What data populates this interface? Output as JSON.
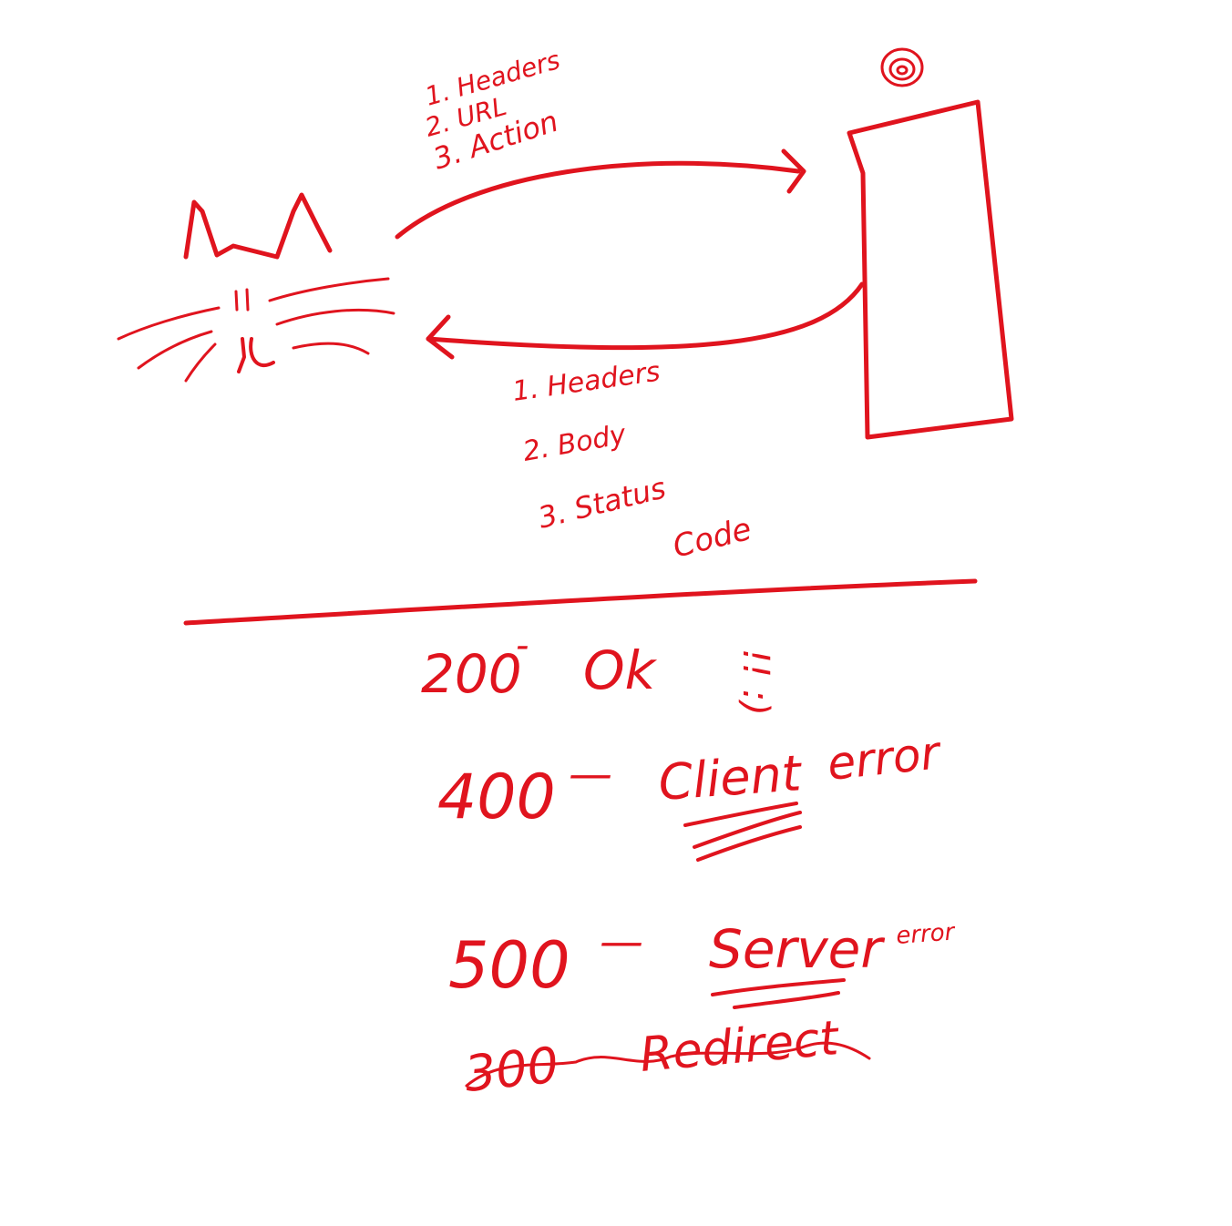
{
  "ink_color": "#e0141e",
  "background": "#ffffff",
  "request": {
    "items": [
      "1. Headers",
      "2. URL",
      "3. Action"
    ]
  },
  "response": {
    "items": [
      "1. Headers",
      "2. Body",
      "3. Status",
      "Code"
    ]
  },
  "status_codes": {
    "ok": {
      "code": "200",
      "separator": "-",
      "label": "Ok",
      "emote": "!! :)"
    },
    "client_error": {
      "code": "400",
      "separator": "—",
      "label": "Client",
      "suffix": "error"
    },
    "server_error": {
      "code": "500",
      "separator": "—",
      "label": "Server",
      "suffix": "error"
    },
    "redirect": {
      "code": "300",
      "label": "Redirect"
    }
  },
  "icons": [
    "cat-face-icon",
    "server-tower-icon",
    "server-power-icon"
  ]
}
